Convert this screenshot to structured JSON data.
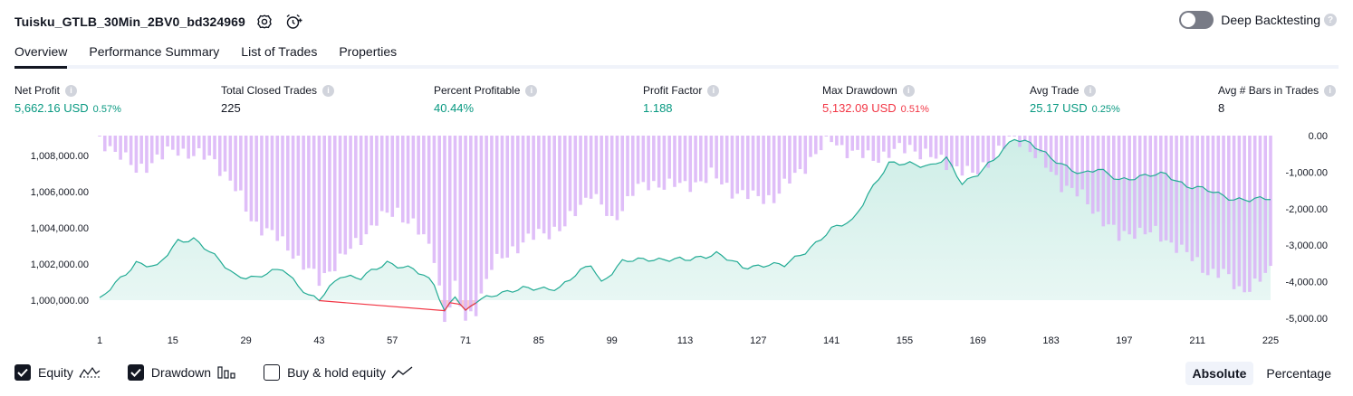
{
  "strategy": {
    "name": "Tuisku_GTLB_30Min_2BV0_bd324969"
  },
  "deep_backtesting": {
    "label": "Deep Backtesting",
    "enabled": false
  },
  "tabs": [
    {
      "label": "Overview",
      "active": true
    },
    {
      "label": "Performance Summary",
      "active": false
    },
    {
      "label": "List of Trades",
      "active": false
    },
    {
      "label": "Properties",
      "active": false
    }
  ],
  "metrics": [
    {
      "label": "Net Profit",
      "value": "5,662.16 USD",
      "pct": "0.57%",
      "color": "green"
    },
    {
      "label": "Total Closed Trades",
      "value": "225",
      "pct": "",
      "color": ""
    },
    {
      "label": "Percent Profitable",
      "value": "40.44%",
      "pct": "",
      "color": "green"
    },
    {
      "label": "Profit Factor",
      "value": "1.188",
      "pct": "",
      "color": "green"
    },
    {
      "label": "Max Drawdown",
      "value": "5,132.09 USD",
      "pct": "0.51%",
      "color": "red"
    },
    {
      "label": "Avg Trade",
      "value": "25.17 USD",
      "pct": "0.25%",
      "color": "green"
    },
    {
      "label": "Avg # Bars in Trades",
      "value": "8",
      "pct": "",
      "color": ""
    }
  ],
  "legend": {
    "equity": {
      "label": "Equity",
      "checked": true,
      "icon": "equity-line-icon"
    },
    "drawdown": {
      "label": "Drawdown",
      "checked": true,
      "icon": "drawdown-bars-icon"
    },
    "buyhold": {
      "label": "Buy & hold equity",
      "checked": false,
      "icon": "buyhold-line-icon"
    }
  },
  "mode": {
    "absolute": "Absolute",
    "percentage": "Percentage",
    "selected": "absolute"
  },
  "colors": {
    "equity_line": "#22ab94",
    "equity_fill": "#ccede6",
    "equity_below": "#f23645",
    "drawdown_bar": "#d9b3f7",
    "drawdown_bar_over": "#a9b6e3",
    "positive": "#089981",
    "negative": "#f23645"
  },
  "chart_data": {
    "type": "area",
    "x_ticks": [
      "1",
      "15",
      "29",
      "43",
      "57",
      "71",
      "85",
      "99",
      "113",
      "127",
      "141",
      "155",
      "169",
      "183",
      "197",
      "211",
      "225"
    ],
    "left_axis": {
      "ticks": [
        "1,000,000.00",
        "1,002,000.00",
        "1,004,000.00",
        "1,006,000.00",
        "1,008,000.00"
      ],
      "ylim": [
        999000,
        1009100
      ]
    },
    "right_axis": {
      "ticks": [
        "0.00",
        "-1,000.00",
        "-2,000.00",
        "-3,000.00",
        "-4,000.00",
        "-5,000.00"
      ],
      "ylim": [
        -5000,
        0
      ]
    },
    "baseline": 1000000,
    "equity_keypoints": [
      [
        1,
        1000000
      ],
      [
        8,
        1002100
      ],
      [
        12,
        1001800
      ],
      [
        16,
        1003300
      ],
      [
        19,
        1003400
      ],
      [
        23,
        1002400
      ],
      [
        27,
        1001400
      ],
      [
        31,
        1001200
      ],
      [
        36,
        1001800
      ],
      [
        41,
        1000200
      ],
      [
        43,
        1000000
      ],
      [
        47,
        1001400
      ],
      [
        51,
        1001200
      ],
      [
        56,
        1002100
      ],
      [
        61,
        1001700
      ],
      [
        65,
        1000900
      ],
      [
        67,
        999400
      ],
      [
        69,
        1000300
      ],
      [
        71,
        999300
      ],
      [
        73,
        999900
      ],
      [
        77,
        1000400
      ],
      [
        82,
        1000600
      ],
      [
        89,
        1000700
      ],
      [
        95,
        1002000
      ],
      [
        97,
        1001000
      ],
      [
        101,
        1002100
      ],
      [
        106,
        1002300
      ],
      [
        113,
        1002200
      ],
      [
        119,
        1002600
      ],
      [
        124,
        1001800
      ],
      [
        129,
        1002000
      ],
      [
        132,
        1001900
      ],
      [
        136,
        1002700
      ],
      [
        141,
        1003900
      ],
      [
        145,
        1004400
      ],
      [
        148,
        1005900
      ],
      [
        152,
        1007500
      ],
      [
        156,
        1007600
      ],
      [
        160,
        1007400
      ],
      [
        163,
        1007800
      ],
      [
        166,
        1006500
      ],
      [
        169,
        1007000
      ],
      [
        172,
        1007700
      ],
      [
        176,
        1009000
      ],
      [
        179,
        1008700
      ],
      [
        183,
        1007800
      ],
      [
        189,
        1007000
      ],
      [
        192,
        1007200
      ],
      [
        196,
        1006700
      ],
      [
        200,
        1006800
      ],
      [
        205,
        1007000
      ],
      [
        209,
        1006300
      ],
      [
        214,
        1006000
      ],
      [
        218,
        1005600
      ],
      [
        221,
        1005500
      ],
      [
        225,
        1005660
      ]
    ],
    "drawdown_keypoints": [
      [
        1,
        -200
      ],
      [
        3,
        -300
      ],
      [
        5,
        -500
      ],
      [
        8,
        -1000
      ],
      [
        12,
        -600
      ],
      [
        16,
        -400
      ],
      [
        19,
        -500
      ],
      [
        23,
        -700
      ],
      [
        26,
        -1200
      ],
      [
        30,
        -2300
      ],
      [
        34,
        -2700
      ],
      [
        38,
        -3200
      ],
      [
        41,
        -3700
      ],
      [
        43,
        -4000
      ],
      [
        46,
        -3500
      ],
      [
        50,
        -3000
      ],
      [
        54,
        -2300
      ],
      [
        58,
        -2100
      ],
      [
        61,
        -2400
      ],
      [
        65,
        -3300
      ],
      [
        67,
        -5000
      ],
      [
        69,
        -4200
      ],
      [
        71,
        -5100
      ],
      [
        73,
        -4700
      ],
      [
        76,
        -3600
      ],
      [
        80,
        -3100
      ],
      [
        85,
        -2700
      ],
      [
        90,
        -2500
      ],
      [
        95,
        -1500
      ],
      [
        99,
        -2400
      ],
      [
        103,
        -1500
      ],
      [
        108,
        -1300
      ],
      [
        113,
        -1400
      ],
      [
        118,
        -1100
      ],
      [
        122,
        -1500
      ],
      [
        126,
        -1700
      ],
      [
        130,
        -1700
      ],
      [
        134,
        -1100
      ],
      [
        138,
        -500
      ],
      [
        141,
        -100
      ],
      [
        145,
        -500
      ],
      [
        149,
        -600
      ],
      [
        152,
        -500
      ],
      [
        156,
        -300
      ],
      [
        160,
        -600
      ],
      [
        164,
        -800
      ],
      [
        168,
        -1100
      ],
      [
        171,
        -700
      ],
      [
        174,
        -300
      ],
      [
        176,
        0
      ],
      [
        178,
        -200
      ],
      [
        181,
        -700
      ],
      [
        185,
        -1300
      ],
      [
        189,
        -1700
      ],
      [
        193,
        -2300
      ],
      [
        196,
        -2800
      ],
      [
        199,
        -2600
      ],
      [
        203,
        -2700
      ],
      [
        207,
        -3000
      ],
      [
        210,
        -3400
      ],
      [
        213,
        -3700
      ],
      [
        216,
        -3800
      ],
      [
        219,
        -4200
      ],
      [
        222,
        -4100
      ],
      [
        225,
        -3700
      ]
    ]
  }
}
